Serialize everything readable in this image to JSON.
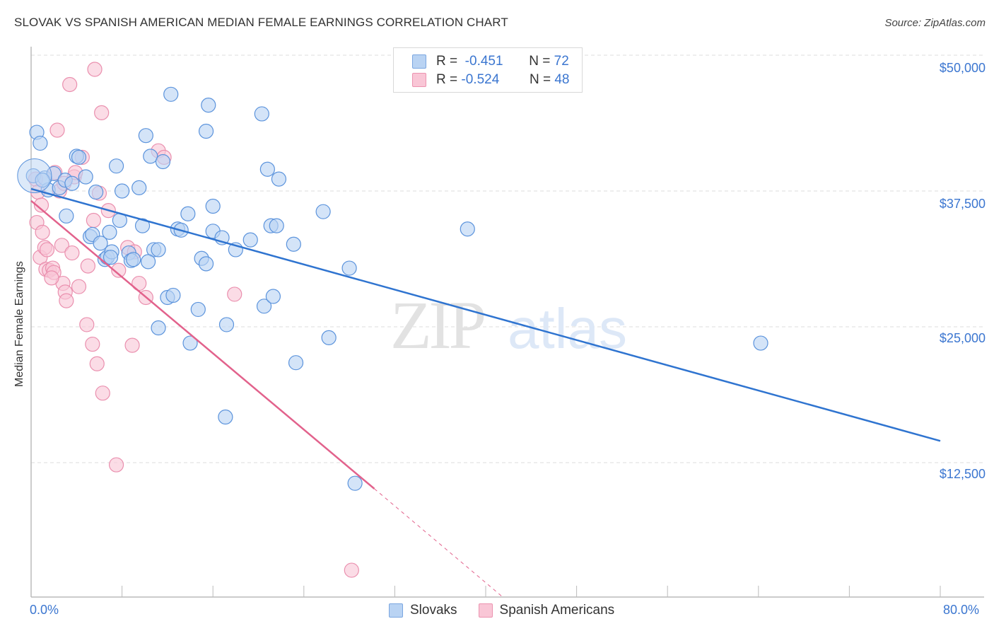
{
  "header": {
    "title": "SLOVAK VS SPANISH AMERICAN MEDIAN FEMALE EARNINGS CORRELATION CHART",
    "source": "Source: ZipAtlas.com"
  },
  "legend_top": {
    "rows": [
      {
        "r_label": "R =",
        "r_value": "-0.451",
        "n_label": "N =",
        "n_value": "72"
      },
      {
        "r_label": "R =",
        "r_value": "-0.524",
        "n_label": "N =",
        "n_value": "48"
      }
    ]
  },
  "legend_bottom": {
    "items": [
      {
        "label": "Slovaks"
      },
      {
        "label": "Spanish Americans"
      }
    ]
  },
  "axes": {
    "ylabel": "Median Female Earnings",
    "yticks": [
      "$50,000",
      "$37,500",
      "$25,000",
      "$12,500"
    ],
    "xticks": [
      "0.0%",
      "80.0%"
    ]
  },
  "colors": {
    "slovaks_fill": "#b9d3f3",
    "slovaks_stroke": "#5b93dc",
    "slovaks_line": "#2f74d0",
    "spanish_fill": "#f9c6d6",
    "spanish_stroke": "#ea8fae",
    "spanish_line": "#e2628c",
    "tick_label": "#3b76d0"
  },
  "chart_data": {
    "type": "scatter",
    "title": "SLOVAK VS SPANISH AMERICAN MEDIAN FEMALE EARNINGS CORRELATION CHART",
    "xlabel": "",
    "ylabel": "Median Female Earnings",
    "xlim": [
      0,
      80
    ],
    "ylim": [
      0,
      52000
    ],
    "x_unit": "%",
    "grid": "horizontal dashed",
    "legend_position": "top-center (stats) and bottom-center (series)",
    "series": [
      {
        "name": "Slovaks",
        "r": -0.451,
        "n": 72,
        "trend": {
          "x0": 0,
          "y0": 37700,
          "x1": 80,
          "y1": 14500
        },
        "points": [
          [
            0.2,
            38900
          ],
          [
            0.5,
            42900
          ],
          [
            0.8,
            41900
          ],
          [
            1.2,
            38700
          ],
          [
            1.5,
            37600
          ],
          [
            2.0,
            39100
          ],
          [
            2.5,
            37800
          ],
          [
            3.0,
            38500
          ],
          [
            3.1,
            35200
          ],
          [
            4.0,
            40700
          ],
          [
            4.8,
            38800
          ],
          [
            5.2,
            33300
          ],
          [
            5.4,
            33500
          ],
          [
            5.7,
            37400
          ],
          [
            6.1,
            32700
          ],
          [
            6.5,
            31200
          ],
          [
            6.7,
            31400
          ],
          [
            6.9,
            33700
          ],
          [
            7.1,
            31900
          ],
          [
            7.5,
            39800
          ],
          [
            7.8,
            34800
          ],
          [
            8.0,
            37500
          ],
          [
            8.6,
            31800
          ],
          [
            8.8,
            31100
          ],
          [
            9.0,
            31200
          ],
          [
            9.5,
            37800
          ],
          [
            9.8,
            34300
          ],
          [
            10.1,
            42600
          ],
          [
            10.5,
            40700
          ],
          [
            10.8,
            32100
          ],
          [
            11.2,
            32100
          ],
          [
            11.6,
            40200
          ],
          [
            11.2,
            24900
          ],
          [
            12.0,
            27700
          ],
          [
            12.5,
            27900
          ],
          [
            12.3,
            46400
          ],
          [
            12.9,
            34000
          ],
          [
            13.2,
            33900
          ],
          [
            13.8,
            35400
          ],
          [
            14.0,
            23500
          ],
          [
            14.7,
            26600
          ],
          [
            15.0,
            31300
          ],
          [
            15.4,
            30800
          ],
          [
            15.6,
            45400
          ],
          [
            15.4,
            43000
          ],
          [
            16.0,
            36100
          ],
          [
            16.0,
            33800
          ],
          [
            16.8,
            33200
          ],
          [
            17.2,
            25200
          ],
          [
            17.1,
            16700
          ],
          [
            18.0,
            32100
          ],
          [
            20.3,
            44600
          ],
          [
            20.5,
            26900
          ],
          [
            20.8,
            39500
          ],
          [
            21.1,
            34300
          ],
          [
            21.6,
            34300
          ],
          [
            21.3,
            27800
          ],
          [
            21.8,
            38600
          ],
          [
            23.1,
            32600
          ],
          [
            23.3,
            21700
          ],
          [
            25.7,
            35600
          ],
          [
            26.2,
            24000
          ],
          [
            28.0,
            30400
          ],
          [
            28.5,
            10600
          ],
          [
            38.4,
            34000
          ],
          [
            64.2,
            23500
          ],
          [
            1.0,
            38500
          ],
          [
            3.6,
            38200
          ],
          [
            4.2,
            40600
          ],
          [
            7.0,
            31400
          ],
          [
            10.3,
            31000
          ],
          [
            19.3,
            33000
          ]
        ]
      },
      {
        "name": "Spanish Americans",
        "r": -0.524,
        "n": 48,
        "trend": {
          "x0": 0,
          "y0": 36600,
          "x1": 30.2,
          "y1": 10100,
          "dashed_extension_to": {
            "x": 41.5,
            "y": 0
          }
        },
        "points": [
          [
            0.4,
            38600
          ],
          [
            0.6,
            37400
          ],
          [
            0.5,
            34600
          ],
          [
            0.8,
            31400
          ],
          [
            1.0,
            33700
          ],
          [
            1.2,
            32300
          ],
          [
            1.4,
            32100
          ],
          [
            1.3,
            30300
          ],
          [
            1.6,
            30200
          ],
          [
            1.9,
            30400
          ],
          [
            2.0,
            30000
          ],
          [
            2.1,
            39200
          ],
          [
            2.3,
            43100
          ],
          [
            2.5,
            37500
          ],
          [
            2.7,
            32500
          ],
          [
            2.8,
            29000
          ],
          [
            3.0,
            28200
          ],
          [
            3.1,
            27400
          ],
          [
            3.4,
            47300
          ],
          [
            3.6,
            31800
          ],
          [
            3.8,
            38800
          ],
          [
            4.2,
            28700
          ],
          [
            4.5,
            40600
          ],
          [
            4.9,
            25200
          ],
          [
            5.0,
            30600
          ],
          [
            5.4,
            23400
          ],
          [
            5.5,
            34800
          ],
          [
            5.6,
            48700
          ],
          [
            5.8,
            21600
          ],
          [
            6.0,
            37300
          ],
          [
            6.2,
            44700
          ],
          [
            6.3,
            18900
          ],
          [
            6.8,
            35700
          ],
          [
            7.5,
            12300
          ],
          [
            8.5,
            32300
          ],
          [
            8.9,
            23300
          ],
          [
            9.1,
            31900
          ],
          [
            9.5,
            29000
          ],
          [
            10.1,
            27700
          ],
          [
            11.2,
            41200
          ],
          [
            11.7,
            40600
          ],
          [
            17.9,
            28000
          ],
          [
            28.2,
            2600
          ],
          [
            2.9,
            38200
          ],
          [
            3.9,
            39200
          ],
          [
            0.9,
            36200
          ],
          [
            1.8,
            29500
          ],
          [
            7.7,
            30200
          ]
        ]
      }
    ]
  }
}
